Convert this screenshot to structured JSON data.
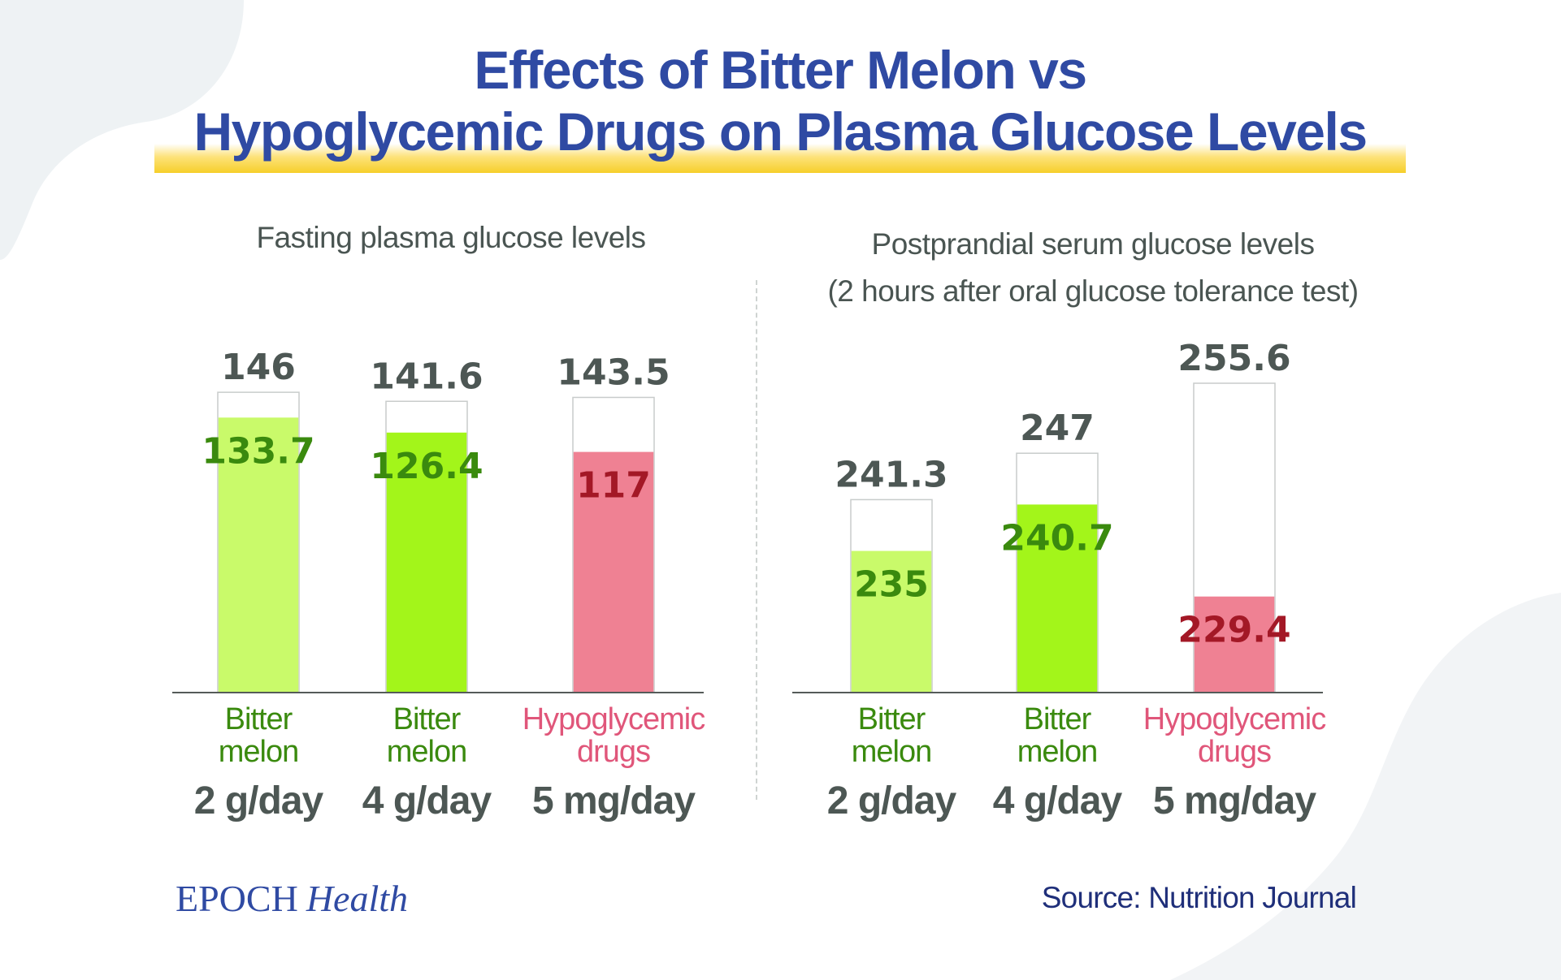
{
  "header": {
    "title_line1": "Effects of Bitter Melon vs",
    "title_line2": "Hypoglycemic Drugs on Plasma Glucose Levels"
  },
  "footer": {
    "brand_epoch": "EPOCH",
    "brand_health": "Health",
    "source": "Source: Nutrition Journal"
  },
  "colors": {
    "title": "#2f4aa3",
    "bitter_melon_2g": "#c9fa6a",
    "bitter_melon_4g": "#a3f51a",
    "hypoglycemic": "#ef8193",
    "green_text": "#3a8a0e",
    "red_text": "#a31826",
    "pink_label": "#e0567a",
    "value_gray": "#4d5754"
  },
  "chart_data": [
    {
      "type": "bar",
      "title": "Fasting plasma glucose levels",
      "categories": [
        {
          "line1": "Bitter",
          "line2": "melon",
          "dose": "2 g/day"
        },
        {
          "line1": "Bitter",
          "line2": "melon",
          "dose": "4 g/day"
        },
        {
          "line1": "Hypoglycemic",
          "line2": "drugs",
          "dose": "5 mg/day"
        }
      ],
      "before": [
        146,
        141.6,
        143.5
      ],
      "after": [
        133.7,
        126.4,
        117
      ],
      "before_labels": [
        "146",
        "141.6",
        "143.5"
      ],
      "after_labels": [
        "133.7",
        "126.4",
        "117"
      ],
      "fill_colors": [
        "#c9fa6a",
        "#a3f51a",
        "#ef8193"
      ],
      "value_colors": [
        "#3a8a0e",
        "#3a8a0e",
        "#a31826"
      ],
      "label_colors": [
        "#3a8a0e",
        "#3a8a0e",
        "#e0567a"
      ],
      "ylim": [
        0,
        150
      ]
    },
    {
      "type": "bar",
      "title": "Postprandial serum glucose levels",
      "subtitle": "(2 hours after oral glucose tolerance test)",
      "categories": [
        {
          "line1": "Bitter",
          "line2": "melon",
          "dose": "2 g/day"
        },
        {
          "line1": "Bitter",
          "line2": "melon",
          "dose": "4 g/day"
        },
        {
          "line1": "Hypoglycemic",
          "line2": "drugs",
          "dose": "5 mg/day"
        }
      ],
      "before": [
        241.3,
        247,
        255.6
      ],
      "after": [
        235,
        240.7,
        229.4
      ],
      "before_labels": [
        "241.3",
        "247",
        "255.6"
      ],
      "after_labels": [
        "235",
        "240.7",
        "229.4"
      ],
      "fill_colors": [
        "#c9fa6a",
        "#a3f51a",
        "#ef8193"
      ],
      "value_colors": [
        "#3a8a0e",
        "#3a8a0e",
        "#a31826"
      ],
      "label_colors": [
        "#3a8a0e",
        "#3a8a0e",
        "#e0567a"
      ],
      "ylim": [
        217.6,
        255.6
      ]
    }
  ]
}
